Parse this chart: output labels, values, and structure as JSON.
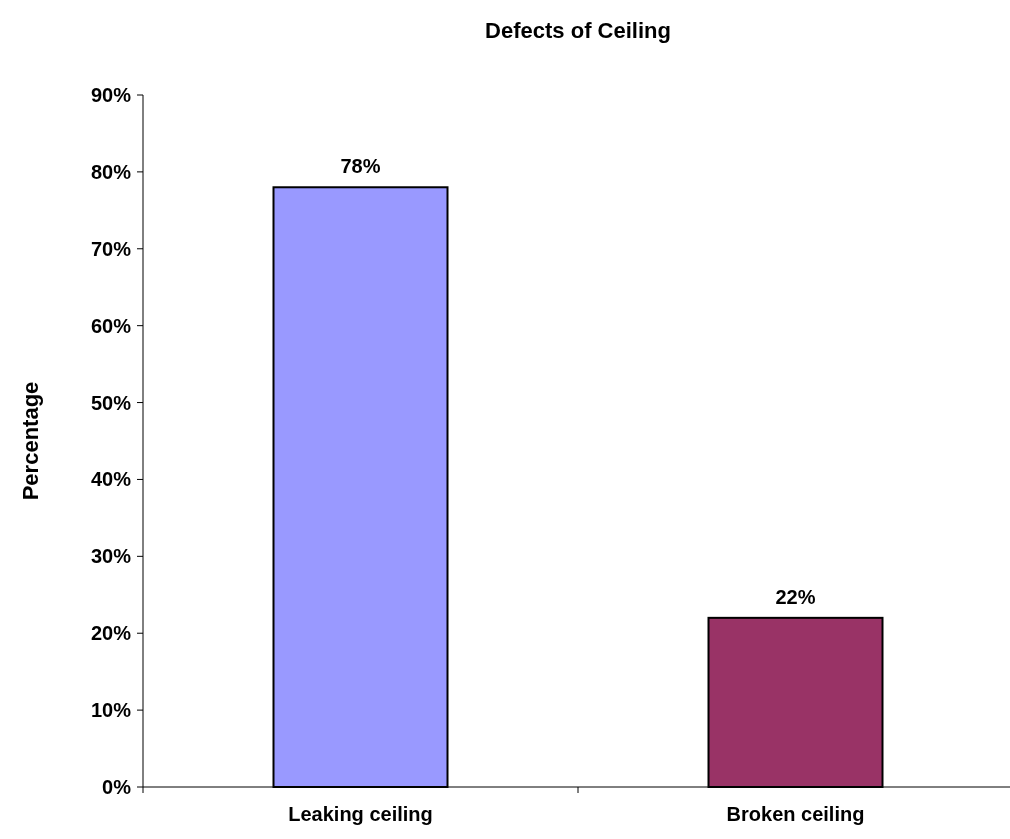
{
  "chart_data": {
    "type": "bar",
    "title": "Defects of Ceiling",
    "ylabel": "Percentage",
    "categories": [
      "Leaking ceiling",
      "Broken ceiling"
    ],
    "values": [
      78,
      22
    ],
    "colors": [
      "#9999ff",
      "#993366"
    ],
    "value_labels": [
      "78%",
      "22%"
    ],
    "ylim": [
      0,
      90
    ],
    "yticks": [
      {
        "value": 0,
        "label": "0%"
      },
      {
        "value": 10,
        "label": "10%"
      },
      {
        "value": 20,
        "label": "20%"
      },
      {
        "value": 30,
        "label": "30%"
      },
      {
        "value": 40,
        "label": "40%"
      },
      {
        "value": 50,
        "label": "50%"
      },
      {
        "value": 60,
        "label": "60%"
      },
      {
        "value": 70,
        "label": "70%"
      },
      {
        "value": 80,
        "label": "80%"
      },
      {
        "value": 90,
        "label": "90%"
      }
    ],
    "grid": false
  }
}
